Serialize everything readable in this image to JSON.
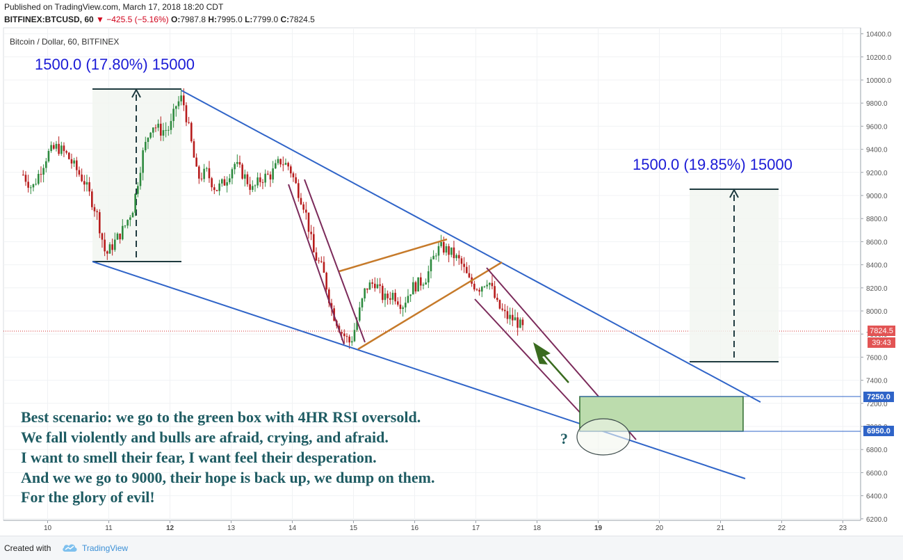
{
  "header": {
    "published": "Published on TradingView.com, March 17, 2018 18:20 CDT",
    "symbol": "BITFINEX:BTCUSD, 60",
    "change": "▼ −425.5 (−5.16%)",
    "o_label": "O:",
    "o_value": "7987.8",
    "h_label": "H:",
    "h_value": "7995.0",
    "l_label": "L:",
    "l_value": "7799.0",
    "c_label": "C:",
    "c_value": "7824.5"
  },
  "chart_title": "Bitcoin / Dollar, 60, BITFINEX",
  "measure_left": "1500.0 (17.80%) 15000",
  "measure_right": "1500.0 (19.85%) 15000",
  "annotation_lines": [
    "Best scenario: we go to the green box with 4HR RSI oversold.",
    "We fall violently and bulls are afraid, crying, and afraid.",
    "I want to smell their fear, I want feel their desperation.",
    "And we we go to 9000, their hope is back up, we dump on them.",
    "For the glory of evil!"
  ],
  "question_mark": "?",
  "price_badges": {
    "last": "7824.5",
    "countdown": "39:43",
    "box_top": "7250.0",
    "box_bottom": "6950.0"
  },
  "footer": {
    "created_with": "Created with",
    "brand": "TradingView"
  },
  "colors": {
    "up": "#2d8a3e",
    "down": "#b71c1c",
    "wedge": "#2f64c8",
    "channel": "#7b2a5a",
    "triangle": "#c67a2a",
    "box_fill": "#bcdcad",
    "text_annotation": "#1f5c63",
    "measure_text": "#1a1ad6"
  },
  "chart_data": {
    "type": "candlestick",
    "title": "Bitcoin / Dollar, 60, BITFINEX",
    "x_tick_labels": [
      "10",
      "11",
      "12",
      "13",
      "14",
      "15",
      "16",
      "17",
      "18",
      "19",
      "20",
      "21",
      "22",
      "23"
    ],
    "y_tick_labels": [
      "6200.0",
      "6400.0",
      "6600.0",
      "6800.0",
      "7000.0",
      "7200.0",
      "7400.0",
      "7600.0",
      "7800.0",
      "8000.0",
      "8200.0",
      "8400.0",
      "8600.0",
      "8800.0",
      "9000.0",
      "9200.0",
      "9400.0",
      "9600.0",
      "9800.0",
      "10000.0",
      "10200.0",
      "10400.0"
    ],
    "ylim": [
      6180,
      10460
    ],
    "xlim": [
      9.55,
      23.2
    ],
    "last_price": 7824.5,
    "green_box": {
      "x_start": 18.65,
      "x_end": 21.3,
      "y_low": 6950,
      "y_high": 7250
    },
    "price_path": [
      [
        9.6,
        9180
      ],
      [
        9.75,
        9060
      ],
      [
        9.85,
        9180
      ],
      [
        10.0,
        9360
      ],
      [
        10.15,
        9420
      ],
      [
        10.3,
        9360
      ],
      [
        10.45,
        9240
      ],
      [
        10.6,
        9120
      ],
      [
        10.8,
        8850
      ],
      [
        10.95,
        8480
      ],
      [
        11.1,
        8600
      ],
      [
        11.25,
        8720
      ],
      [
        11.4,
        8900
      ],
      [
        11.55,
        9350
      ],
      [
        11.7,
        9620
      ],
      [
        11.85,
        9560
      ],
      [
        12.0,
        9580
      ],
      [
        12.1,
        9780
      ],
      [
        12.2,
        9850
      ],
      [
        12.3,
        9600
      ],
      [
        12.45,
        9150
      ],
      [
        12.6,
        9200
      ],
      [
        12.75,
        9050
      ],
      [
        12.9,
        9120
      ],
      [
        13.05,
        9280
      ],
      [
        13.2,
        9180
      ],
      [
        13.35,
        9050
      ],
      [
        13.5,
        9150
      ],
      [
        13.65,
        9180
      ],
      [
        13.8,
        9300
      ],
      [
        13.95,
        9250
      ],
      [
        14.05,
        9100
      ],
      [
        14.2,
        8900
      ],
      [
        14.35,
        8500
      ],
      [
        14.5,
        8350
      ],
      [
        14.65,
        8000
      ],
      [
        14.8,
        7820
      ],
      [
        14.95,
        7720
      ],
      [
        15.05,
        7900
      ],
      [
        15.2,
        8200
      ],
      [
        15.35,
        8250
      ],
      [
        15.5,
        8100
      ],
      [
        15.65,
        8150
      ],
      [
        15.8,
        8050
      ],
      [
        15.95,
        8200
      ],
      [
        16.1,
        8250
      ],
      [
        16.2,
        8300
      ],
      [
        16.35,
        8520
      ],
      [
        16.45,
        8550
      ],
      [
        16.6,
        8500
      ],
      [
        16.75,
        8420
      ],
      [
        16.9,
        8250
      ],
      [
        17.05,
        8200
      ],
      [
        17.2,
        8280
      ],
      [
        17.35,
        8050
      ],
      [
        17.5,
        7950
      ],
      [
        17.65,
        7920
      ],
      [
        17.8,
        7824.5
      ]
    ],
    "series": [
      {
        "name": "",
        "values": []
      }
    ],
    "grid": true
  }
}
